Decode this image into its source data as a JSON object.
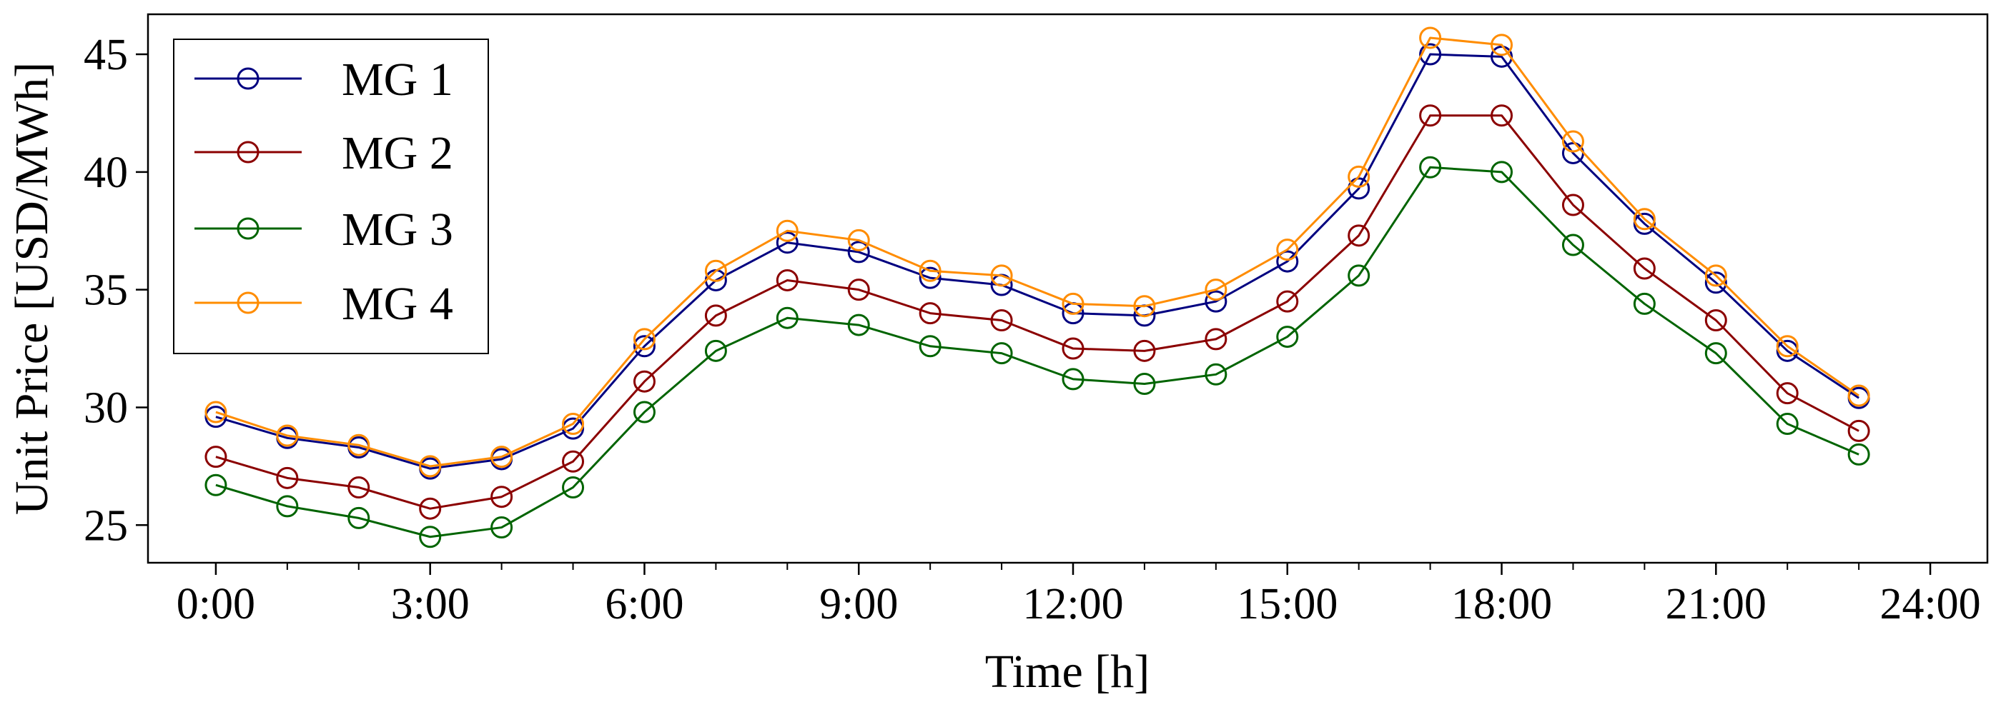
{
  "chart_data": {
    "type": "line",
    "title": "",
    "xlabel": "Time [h]",
    "ylabel": "Unit Price [USD/MWh]",
    "x": [
      0,
      1,
      2,
      3,
      4,
      5,
      6,
      7,
      8,
      9,
      10,
      11,
      12,
      13,
      14,
      15,
      16,
      17,
      18,
      19,
      20,
      21,
      22,
      23
    ],
    "xlim": [
      -0.95,
      24.8
    ],
    "ylim": [
      23.4,
      46.7
    ],
    "xticks": [
      0,
      3,
      6,
      9,
      12,
      15,
      18,
      21,
      24
    ],
    "xtick_labels": [
      "0:00",
      "3:00",
      "6:00",
      "9:00",
      "12:00",
      "15:00",
      "18:00",
      "21:00",
      "24:00"
    ],
    "minor_xticks": [
      1,
      2,
      4,
      5,
      7,
      8,
      10,
      11,
      13,
      14,
      16,
      17,
      19,
      20,
      22,
      23
    ],
    "yticks": [
      25,
      30,
      35,
      40,
      45
    ],
    "ytick_labels": [
      "25",
      "30",
      "35",
      "40",
      "45"
    ],
    "grid": false,
    "legend_position": "top-left",
    "series": [
      {
        "name": "MG 1",
        "color": "#000080",
        "values": [
          29.6,
          28.7,
          28.3,
          27.4,
          27.8,
          29.1,
          32.6,
          35.4,
          37.0,
          36.6,
          35.5,
          35.2,
          34.0,
          33.9,
          34.5,
          36.2,
          39.3,
          45.0,
          44.9,
          40.8,
          37.8,
          35.3,
          32.4,
          30.4
        ]
      },
      {
        "name": "MG 2",
        "color": "#8B0000",
        "values": [
          27.9,
          27.0,
          26.6,
          25.7,
          26.2,
          27.7,
          31.1,
          33.9,
          35.4,
          35.0,
          34.0,
          33.7,
          32.5,
          32.4,
          32.9,
          34.5,
          37.3,
          42.4,
          42.4,
          38.6,
          35.9,
          33.7,
          30.6,
          29.0
        ]
      },
      {
        "name": "MG 3",
        "color": "#006400",
        "values": [
          26.7,
          25.8,
          25.3,
          24.5,
          24.9,
          26.6,
          29.8,
          32.4,
          33.8,
          33.5,
          32.6,
          32.3,
          31.2,
          31.0,
          31.4,
          33.0,
          35.6,
          40.2,
          40.0,
          36.9,
          34.4,
          32.3,
          29.3,
          28.0
        ]
      },
      {
        "name": "MG 4",
        "color": "#FF8C00",
        "values": [
          29.8,
          28.8,
          28.4,
          27.5,
          27.9,
          29.3,
          32.9,
          35.8,
          37.5,
          37.1,
          35.8,
          35.6,
          34.4,
          34.3,
          35.0,
          36.7,
          39.8,
          45.7,
          45.4,
          41.3,
          38.0,
          35.6,
          32.6,
          30.5
        ]
      }
    ]
  }
}
